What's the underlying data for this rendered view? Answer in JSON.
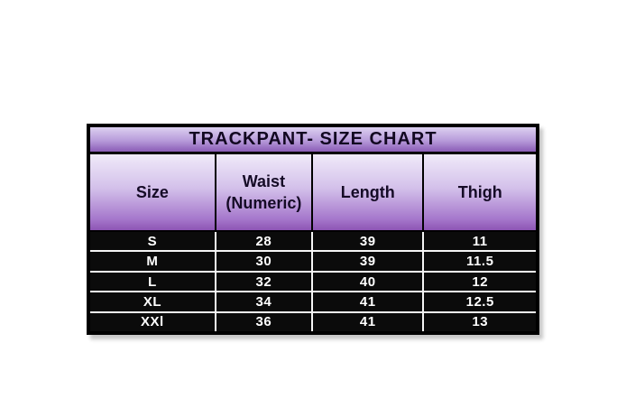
{
  "chart_data": {
    "type": "table",
    "title": "TRACKPANT- SIZE CHART",
    "columns": [
      "Size",
      "Waist (Numeric)",
      "Length",
      "Thigh"
    ],
    "rows": [
      [
        "S",
        "28",
        "39",
        "11"
      ],
      [
        "M",
        "30",
        "39",
        "11.5"
      ],
      [
        "L",
        "32",
        "40",
        "12"
      ],
      [
        "XL",
        "34",
        "41",
        "12.5"
      ],
      [
        "XXl",
        "36",
        "41",
        "13"
      ]
    ]
  },
  "colors": {
    "title_gradient_top": "#dcd0f0",
    "title_gradient_bottom": "#8a5cb6",
    "header_gradient_top": "#f0eaf9",
    "header_gradient_bottom": "#8d55b4",
    "row_background": "#0b0b0b",
    "row_text": "#ffffff",
    "border": "#000000",
    "separator": "#f5f5f5",
    "page_background": "#ffffff",
    "shadow": "#c6c6c6"
  }
}
